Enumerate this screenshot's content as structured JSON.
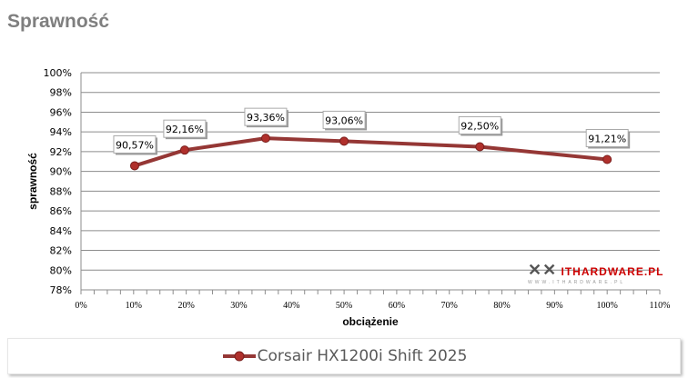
{
  "chart_data": {
    "type": "line",
    "title": "Sprawność",
    "xlabel": "obciążenie",
    "ylabel": "sprawność",
    "xlim": [
      0,
      110
    ],
    "ylim": [
      78,
      100
    ],
    "xticks": [
      "0%",
      "10%",
      "20%",
      "30%",
      "40%",
      "50%",
      "60%",
      "70%",
      "80%",
      "90%",
      "100%",
      "110%"
    ],
    "yticks": [
      "78%",
      "80%",
      "82%",
      "84%",
      "86%",
      "88%",
      "90%",
      "92%",
      "94%",
      "96%",
      "98%",
      "100%"
    ],
    "grid": true,
    "legend_position": "bottom",
    "series": [
      {
        "name": "Corsair HX1200i Shift 2025",
        "color": "#953735",
        "x": [
          10.2,
          19.7,
          35.1,
          50,
          75.8,
          100
        ],
        "y": [
          90.57,
          92.16,
          93.36,
          93.06,
          92.5,
          91.21
        ],
        "labels": [
          "90,57%",
          "92,16%",
          "93,36%",
          "93,06%",
          "92,50%",
          "91,21%"
        ]
      }
    ]
  },
  "watermark": {
    "brand": "ITHARDWARE.PL",
    "url": "WWW.ITHARDWARE.PL"
  }
}
